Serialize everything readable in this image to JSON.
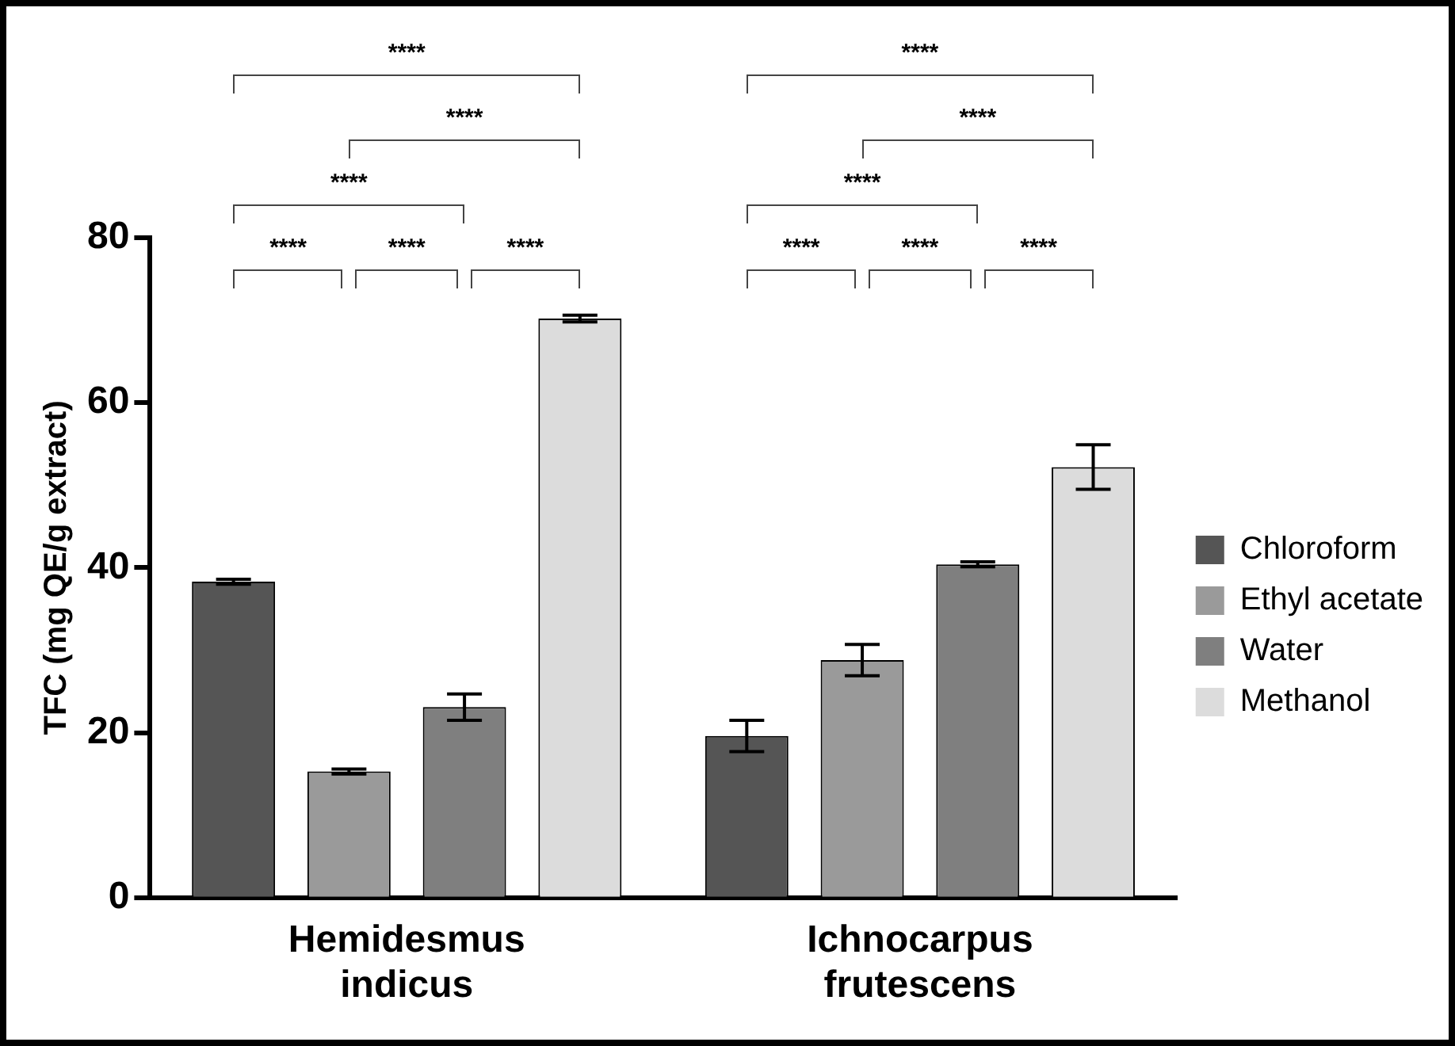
{
  "chart_data": {
    "type": "bar",
    "ylabel": "TFC (mg QE/g extract)",
    "categories": [
      "Hemidesmus indicus",
      "Ichnocarpus frutescens"
    ],
    "series": [
      {
        "name": "Chloroform",
        "color": "#555555",
        "values": [
          38.3,
          19.6
        ],
        "errors": [
          0.3,
          1.9
        ]
      },
      {
        "name": "Ethyl acetate",
        "color": "#9a9a9a",
        "values": [
          15.3,
          28.8
        ],
        "errors": [
          0.3,
          1.9
        ]
      },
      {
        "name": "Water",
        "color": "#7f7f7f",
        "values": [
          23.1,
          40.4
        ],
        "errors": [
          1.6,
          0.3
        ]
      },
      {
        "name": "Methanol",
        "color": "#dcdcdc",
        "values": [
          70.2,
          52.2
        ],
        "errors": [
          0.4,
          2.7
        ]
      }
    ],
    "ylim": [
      0,
      80
    ],
    "yticks": [
      0,
      20,
      40,
      60,
      80
    ],
    "grid": false,
    "legend": "right",
    "annotations": [
      "****",
      "****",
      "****",
      "****",
      "****",
      "****",
      "****",
      "****",
      "****",
      "****",
      "****",
      "****"
    ]
  }
}
